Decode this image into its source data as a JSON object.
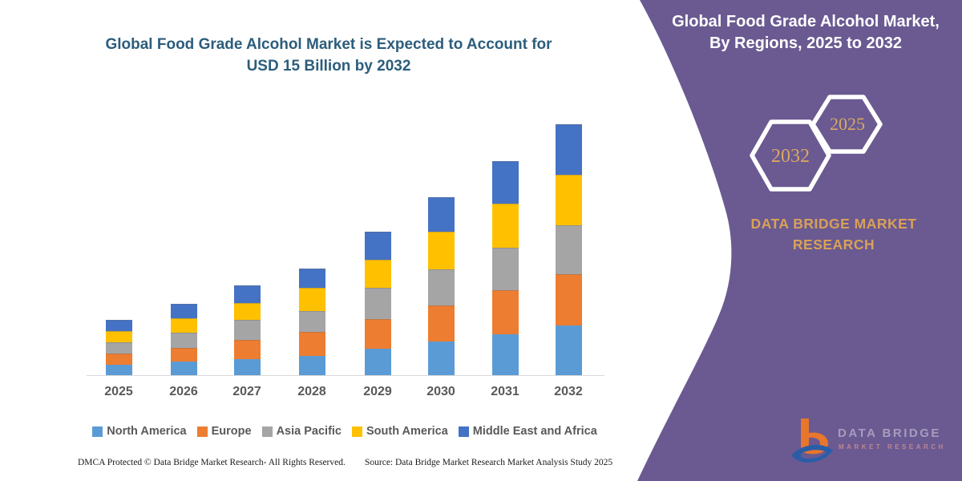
{
  "chart": {
    "title_line1": "Global Food Grade Alcohol Market is Expected to Account for",
    "title_line2": "USD 15 Billion by 2032",
    "title_color": "#2C5D7C"
  },
  "chart_data": {
    "type": "bar",
    "stacked": true,
    "title": "Global Food Grade Alcohol Market is Expected to Account for USD 15 Billion by 2032",
    "xlabel": "",
    "ylabel": "",
    "unit": "USD Billion",
    "ylim": [
      0,
      15.5
    ],
    "grid": false,
    "legend_position": "bottom",
    "categories": [
      "2025",
      "2026",
      "2027",
      "2028",
      "2029",
      "2030",
      "2031",
      "2032"
    ],
    "series": [
      {
        "name": "North America",
        "color": "#5B9BD5",
        "values": [
          0.65,
          0.83,
          1.0,
          1.2,
          1.6,
          2.05,
          2.5,
          3.0
        ]
      },
      {
        "name": "Europe",
        "color": "#ED7D31",
        "values": [
          0.67,
          0.83,
          1.15,
          1.4,
          1.78,
          2.15,
          2.6,
          3.08
        ]
      },
      {
        "name": "Asia Pacific",
        "color": "#A5A5A5",
        "values": [
          0.64,
          0.9,
          1.17,
          1.28,
          1.87,
          2.15,
          2.52,
          2.9
        ]
      },
      {
        "name": "South America",
        "color": "#FFC000",
        "values": [
          0.67,
          0.86,
          1.0,
          1.35,
          1.63,
          2.25,
          2.63,
          3.02
        ]
      },
      {
        "name": "Middle East and Africa",
        "color": "#4472C4",
        "values": [
          0.67,
          0.85,
          1.06,
          1.15,
          1.68,
          2.04,
          2.55,
          3.0
        ]
      }
    ],
    "totals": [
      3.3,
      4.27,
      5.38,
      6.38,
      8.56,
      10.64,
      12.8,
      15.0
    ]
  },
  "sidebar": {
    "bg_color": "#6A5A91",
    "title_line1": "Global Food Grade Alcohol Market,",
    "title_line2": "By Regions, 2025 to 2032",
    "hexagon_back_label": "2032",
    "hexagon_front_label": "2025",
    "hex_text_color": "#DCA763",
    "brand_line1": "DATA BRIDGE MARKET",
    "brand_line2": "RESEARCH",
    "brand_color": "#D9A158",
    "logo": {
      "text_primary": "DATA BRIDGE",
      "text_secondary": "MARKET RESEARCH",
      "mark_orange": "#E8762C",
      "mark_blue": "#2B5DA7"
    }
  },
  "footer": {
    "left": "DMCA Protected © Data Bridge Market Research- All Rights Reserved.",
    "right": "Source: Data Bridge Market Research Market Analysis Study 2025"
  }
}
